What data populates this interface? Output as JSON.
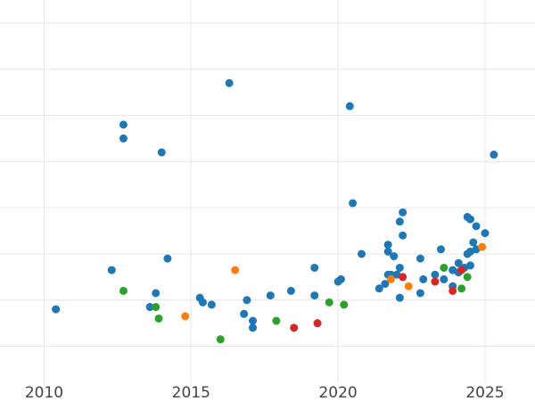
{
  "chart_data": {
    "type": "scatter",
    "title": "",
    "xlabel": "",
    "ylabel": "",
    "xlim": [
      2008.5,
      2026.7
    ],
    "ylim": [
      0,
      8.3
    ],
    "grid": true,
    "x_ticks": [
      2010,
      2015,
      2020,
      2025
    ],
    "x_tick_labels": [
      "2010",
      "2015",
      "2020",
      "2025"
    ],
    "y_gridlines": [
      0.8,
      1.8,
      2.8,
      3.8,
      4.8,
      5.8,
      6.8,
      7.8
    ],
    "series": [
      {
        "color": "#1f77b4",
        "points": [
          [
            2010.4,
            1.6
          ],
          [
            2012.3,
            2.45
          ],
          [
            2012.7,
            5.6
          ],
          [
            2012.7,
            5.3
          ],
          [
            2013.6,
            1.65
          ],
          [
            2013.8,
            1.95
          ],
          [
            2014.0,
            5.0
          ],
          [
            2014.2,
            2.7
          ],
          [
            2015.3,
            1.85
          ],
          [
            2015.4,
            1.75
          ],
          [
            2015.7,
            1.7
          ],
          [
            2016.3,
            6.5
          ],
          [
            2016.8,
            1.5
          ],
          [
            2016.9,
            1.8
          ],
          [
            2017.1,
            1.35
          ],
          [
            2017.1,
            1.2
          ],
          [
            2017.7,
            1.9
          ],
          [
            2018.4,
            2.0
          ],
          [
            2019.2,
            2.5
          ],
          [
            2019.2,
            1.9
          ],
          [
            2020.0,
            2.2
          ],
          [
            2020.1,
            2.25
          ],
          [
            2020.4,
            6.0
          ],
          [
            2020.5,
            3.9
          ],
          [
            2020.8,
            2.8
          ],
          [
            2021.4,
            2.05
          ],
          [
            2021.6,
            2.15
          ],
          [
            2021.7,
            3.0
          ],
          [
            2021.7,
            2.85
          ],
          [
            2021.7,
            2.35
          ],
          [
            2021.8,
            2.35
          ],
          [
            2021.9,
            2.75
          ],
          [
            2022.0,
            2.35
          ],
          [
            2022.1,
            1.85
          ],
          [
            2022.1,
            2.5
          ],
          [
            2022.1,
            3.5
          ],
          [
            2022.2,
            3.2
          ],
          [
            2022.2,
            3.7
          ],
          [
            2022.8,
            2.7
          ],
          [
            2022.8,
            1.95
          ],
          [
            2022.9,
            2.25
          ],
          [
            2023.3,
            2.35
          ],
          [
            2023.5,
            2.9
          ],
          [
            2023.6,
            2.25
          ],
          [
            2023.9,
            2.1
          ],
          [
            2023.9,
            2.45
          ],
          [
            2024.1,
            2.6
          ],
          [
            2024.1,
            2.4
          ],
          [
            2024.3,
            2.5
          ],
          [
            2024.4,
            2.8
          ],
          [
            2024.4,
            3.6
          ],
          [
            2024.5,
            3.55
          ],
          [
            2024.5,
            2.55
          ],
          [
            2024.5,
            2.85
          ],
          [
            2024.6,
            3.05
          ],
          [
            2024.7,
            2.9
          ],
          [
            2024.7,
            3.4
          ],
          [
            2025.0,
            3.25
          ],
          [
            2025.3,
            4.95
          ]
        ]
      },
      {
        "color": "#2ca02c",
        "points": [
          [
            2012.7,
            2.0
          ],
          [
            2013.8,
            1.65
          ],
          [
            2013.9,
            1.4
          ],
          [
            2016.0,
            0.95
          ],
          [
            2017.9,
            1.35
          ],
          [
            2019.7,
            1.75
          ],
          [
            2020.2,
            1.7
          ],
          [
            2023.6,
            2.5
          ],
          [
            2024.2,
            2.05
          ],
          [
            2024.4,
            2.3
          ]
        ]
      },
      {
        "color": "#ff7f0e",
        "points": [
          [
            2014.8,
            1.45
          ],
          [
            2016.5,
            2.45
          ],
          [
            2021.8,
            2.25
          ],
          [
            2022.4,
            2.1
          ],
          [
            2024.9,
            2.95
          ]
        ]
      },
      {
        "color": "#d62728",
        "points": [
          [
            2018.5,
            1.2
          ],
          [
            2019.3,
            1.3
          ],
          [
            2022.2,
            2.3
          ],
          [
            2023.3,
            2.2
          ],
          [
            2023.9,
            2.0
          ],
          [
            2024.2,
            2.45
          ]
        ]
      }
    ]
  }
}
